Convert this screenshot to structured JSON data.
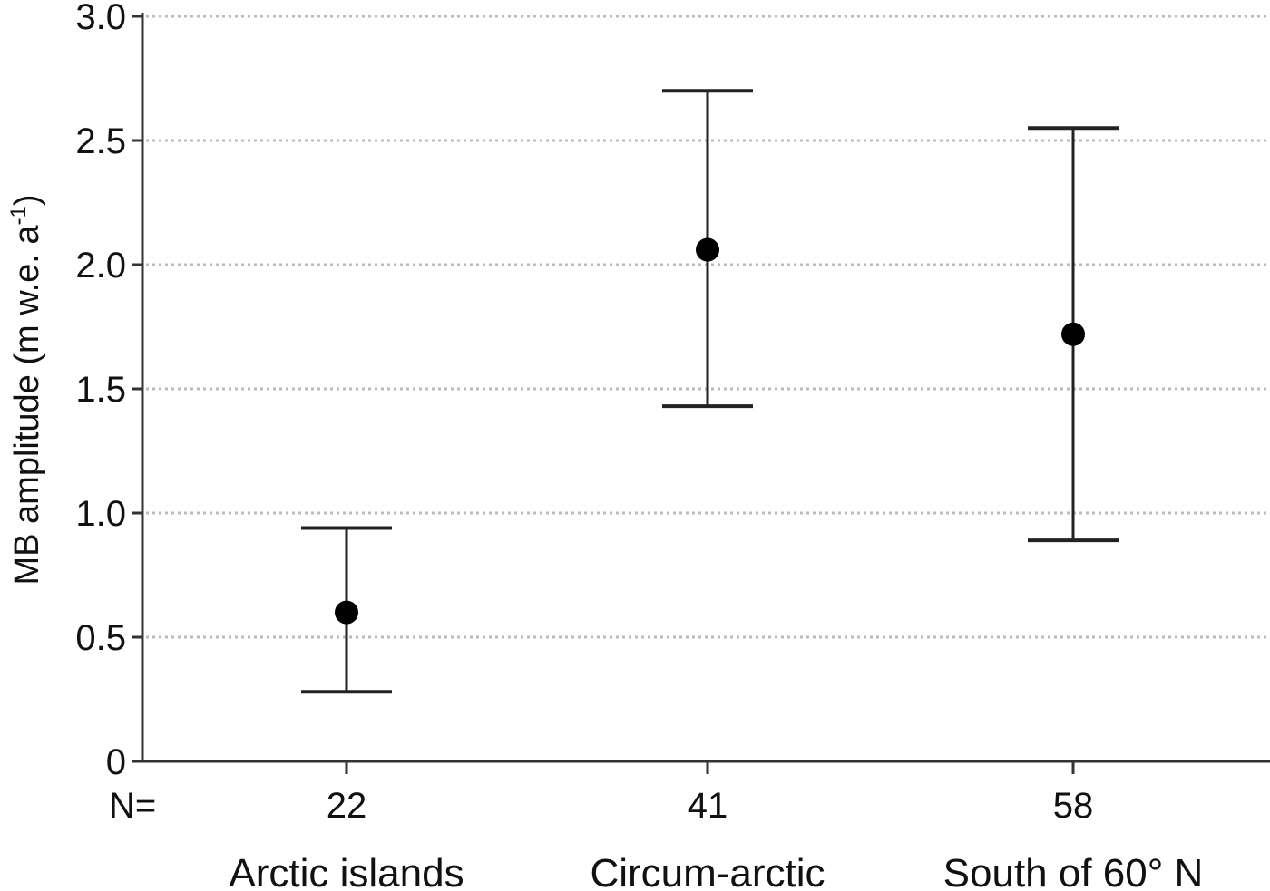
{
  "chart_data": {
    "type": "scatter",
    "subtype": "mean-with-error-bars",
    "title": "",
    "ylabel": "MB amplitude (m w.e. a",
    "ylabel_sup": "-1",
    "ylabel_close": ")",
    "ylim": [
      0,
      3.0
    ],
    "yticks": [
      "0",
      "0.5",
      "1.0",
      "1.5",
      "2.0",
      "2.5",
      "3.0"
    ],
    "ytick_values": [
      0,
      0.5,
      1.0,
      1.5,
      2.0,
      2.5,
      3.0
    ],
    "grid": true,
    "grid_style": "dotted horizontal",
    "n_prefix": "N=",
    "categories": [
      "Arctic islands",
      "Circum-arctic",
      "South of 60° N"
    ],
    "n_values": [
      "22",
      "41",
      "58"
    ],
    "means": [
      0.6,
      2.06,
      1.72
    ],
    "lower": [
      0.28,
      1.43,
      0.89
    ],
    "upper": [
      0.94,
      2.7,
      2.55
    ],
    "colors": {
      "marker": "#000000",
      "axis": "#333333",
      "grid": "#bbbbbb"
    }
  }
}
